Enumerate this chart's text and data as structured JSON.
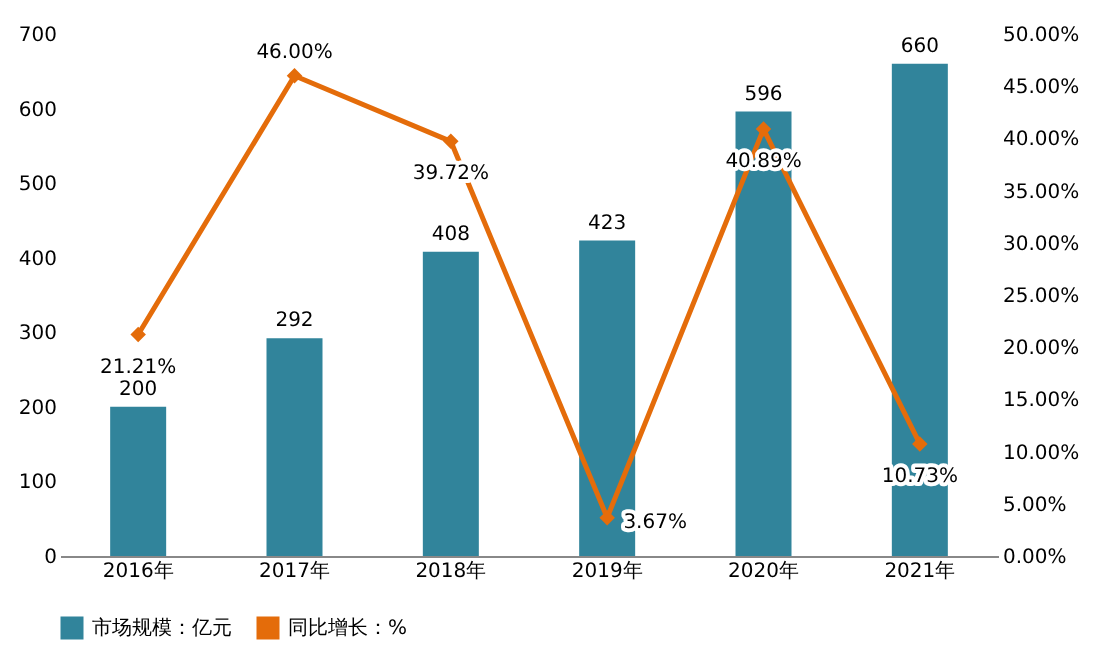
{
  "chart_data": {
    "type": "bar",
    "categories": [
      "2016年",
      "2017年",
      "2018年",
      "2019年",
      "2020年",
      "2021年"
    ],
    "series": [
      {
        "name": "市场规模：亿元",
        "color": "#31849b",
        "values": [
          200,
          292,
          408,
          423,
          596,
          660
        ],
        "value_labels": [
          "200",
          "292",
          "408",
          "423",
          "596",
          "660"
        ]
      },
      {
        "name": "同比增长：%",
        "type": "line",
        "axis": "y2",
        "color": "#e46c0a",
        "marker": "diamond",
        "values": [
          21.21,
          46.0,
          39.72,
          3.67,
          40.89,
          10.73
        ],
        "value_labels": [
          "21.21%",
          "46.00%",
          "39.72%",
          "3.67%",
          "40.89%",
          "10.73%"
        ]
      }
    ],
    "ylim": [
      0,
      700
    ],
    "yticks": [
      0,
      100,
      200,
      300,
      400,
      500,
      600,
      700
    ],
    "y2lim": [
      0,
      50
    ],
    "y2ticks": [
      {
        "value": 0,
        "label": "0.00%"
      },
      {
        "value": 5,
        "label": "5.00%"
      },
      {
        "value": 10,
        "label": "10.00%"
      },
      {
        "value": 15,
        "label": "15.00%"
      },
      {
        "value": 20,
        "label": "20.00%"
      },
      {
        "value": 25,
        "label": "25.00%"
      },
      {
        "value": 30,
        "label": "30.00%"
      },
      {
        "value": 35,
        "label": "35.00%"
      },
      {
        "value": 40,
        "label": "40.00%"
      },
      {
        "value": 45,
        "label": "45.00%"
      },
      {
        "value": 50,
        "label": "50.00%"
      }
    ],
    "grid": false,
    "legend": "bottom"
  }
}
